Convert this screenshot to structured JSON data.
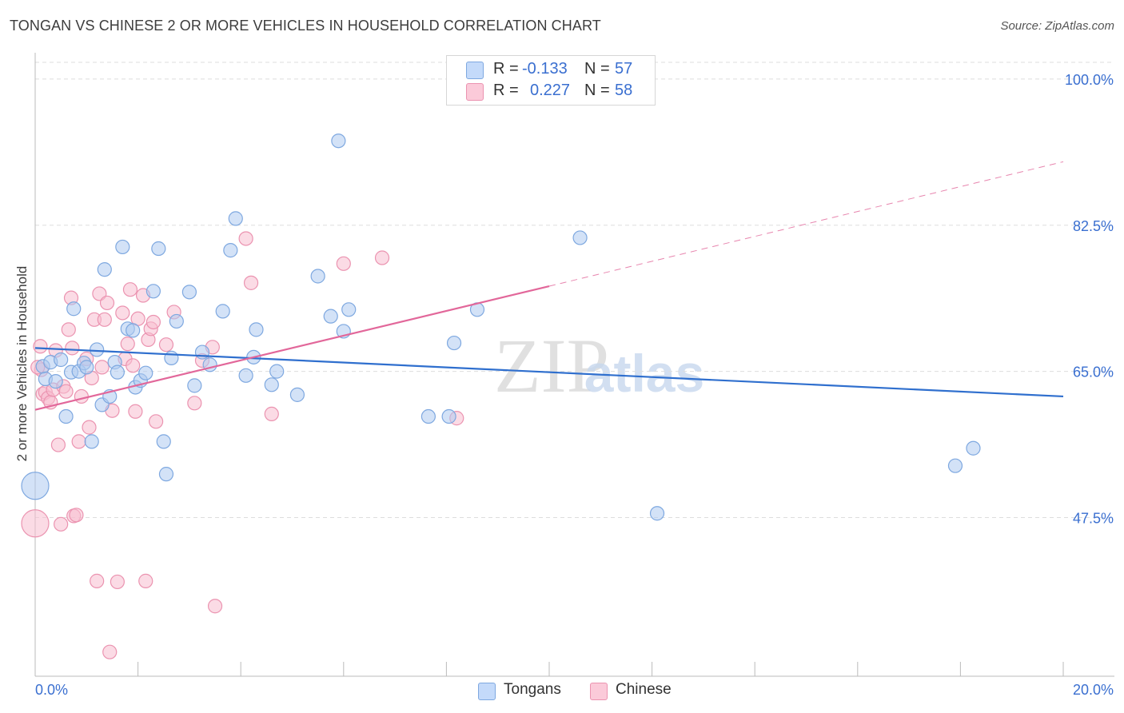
{
  "title": "TONGAN VS CHINESE 2 OR MORE VEHICLES IN HOUSEHOLD CORRELATION CHART",
  "source": "Source: ZipAtlas.com",
  "watermark": {
    "zip": "ZIP",
    "atlas": "atlas"
  },
  "legend": {
    "tongans": {
      "r_label": "R =",
      "r_value": "-0.133",
      "n_label": "N =",
      "n_value": "57"
    },
    "chinese": {
      "r_label": "R =",
      "r_value": "0.227",
      "n_label": "N =",
      "n_value": "58"
    }
  },
  "colors": {
    "tongans_fill": "#aecbf0",
    "tongans_stroke": "#7ea8e0",
    "tongans_line": "#2f6fce",
    "chinese_fill": "#f7bdd0",
    "chinese_stroke": "#eb93b0",
    "chinese_line": "#e2679a",
    "axis_label": "#3a6fd0",
    "grid": "#dddddd"
  },
  "chart_data": {
    "type": "scatter",
    "title": "TONGAN VS CHINESE 2 OR MORE VEHICLES IN HOUSEHOLD CORRELATION CHART",
    "xlabel": "",
    "ylabel": "2 or more Vehicles in Household",
    "xlim": [
      0,
      20
    ],
    "ylim": [
      28.5,
      102
    ],
    "x_tick_labels": [
      "0.0%",
      "20.0%"
    ],
    "y_ticks": [
      47.5,
      65.0,
      82.5,
      100.0
    ],
    "y_tick_labels": [
      "47.5%",
      "65.0%",
      "82.5%",
      "100.0%"
    ],
    "series": [
      {
        "name": "Tongans",
        "R": -0.133,
        "N": 57,
        "trend": {
          "x": [
            0,
            20
          ],
          "y": [
            67.8,
            62.0
          ]
        },
        "points": [
          {
            "x": 0.15,
            "y": 65.6
          },
          {
            "x": 0.2,
            "y": 64.1
          },
          {
            "x": 0.3,
            "y": 66.1
          },
          {
            "x": 0.4,
            "y": 63.8
          },
          {
            "x": 0.5,
            "y": 66.4
          },
          {
            "x": 0.6,
            "y": 59.6
          },
          {
            "x": 0.7,
            "y": 64.9
          },
          {
            "x": 0.75,
            "y": 72.5
          },
          {
            "x": 0.85,
            "y": 65.0
          },
          {
            "x": 0.95,
            "y": 66.0
          },
          {
            "x": 1.0,
            "y": 65.5
          },
          {
            "x": 1.1,
            "y": 56.6
          },
          {
            "x": 1.2,
            "y": 67.6
          },
          {
            "x": 1.3,
            "y": 61.0
          },
          {
            "x": 1.35,
            "y": 77.2
          },
          {
            "x": 1.45,
            "y": 62.0
          },
          {
            "x": 1.55,
            "y": 66.1
          },
          {
            "x": 1.6,
            "y": 64.9
          },
          {
            "x": 1.7,
            "y": 79.9
          },
          {
            "x": 1.8,
            "y": 70.1
          },
          {
            "x": 1.9,
            "y": 69.9
          },
          {
            "x": 1.95,
            "y": 63.1
          },
          {
            "x": 2.05,
            "y": 63.9
          },
          {
            "x": 2.15,
            "y": 64.8
          },
          {
            "x": 2.3,
            "y": 74.6
          },
          {
            "x": 2.4,
            "y": 79.7
          },
          {
            "x": 2.5,
            "y": 56.6
          },
          {
            "x": 2.55,
            "y": 52.7
          },
          {
            "x": 2.65,
            "y": 66.6
          },
          {
            "x": 2.75,
            "y": 71.0
          },
          {
            "x": 3.0,
            "y": 74.5
          },
          {
            "x": 3.1,
            "y": 63.3
          },
          {
            "x": 3.25,
            "y": 67.3
          },
          {
            "x": 3.4,
            "y": 65.8
          },
          {
            "x": 3.65,
            "y": 72.2
          },
          {
            "x": 3.8,
            "y": 79.5
          },
          {
            "x": 3.9,
            "y": 83.3
          },
          {
            "x": 4.1,
            "y": 64.5
          },
          {
            "x": 4.25,
            "y": 66.7
          },
          {
            "x": 4.3,
            "y": 70.0
          },
          {
            "x": 4.6,
            "y": 63.4
          },
          {
            "x": 4.7,
            "y": 65.0
          },
          {
            "x": 5.1,
            "y": 62.2
          },
          {
            "x": 5.5,
            "y": 76.4
          },
          {
            "x": 5.75,
            "y": 71.6
          },
          {
            "x": 5.9,
            "y": 92.6
          },
          {
            "x": 6.0,
            "y": 69.8
          },
          {
            "x": 6.1,
            "y": 72.4
          },
          {
            "x": 7.65,
            "y": 59.6
          },
          {
            "x": 8.05,
            "y": 59.6
          },
          {
            "x": 8.15,
            "y": 68.4
          },
          {
            "x": 8.6,
            "y": 72.4
          },
          {
            "x": 10.6,
            "y": 81.0
          },
          {
            "x": 12.1,
            "y": 48.0
          },
          {
            "x": 17.9,
            "y": 53.7
          },
          {
            "x": 18.25,
            "y": 55.8
          },
          {
            "x": 0.0,
            "y": 51.3
          }
        ]
      },
      {
        "name": "Chinese",
        "R": 0.227,
        "N": 58,
        "trend": {
          "x": [
            0,
            10
          ],
          "y": [
            60.4,
            75.2
          ]
        },
        "trend_extension": {
          "x": [
            10,
            20
          ],
          "y": [
            75.2,
            90.1
          ]
        },
        "points": [
          {
            "x": 0.1,
            "y": 68.0
          },
          {
            "x": 0.12,
            "y": 65.2
          },
          {
            "x": 0.15,
            "y": 62.3
          },
          {
            "x": 0.2,
            "y": 62.5
          },
          {
            "x": 0.25,
            "y": 61.8
          },
          {
            "x": 0.3,
            "y": 61.3
          },
          {
            "x": 0.35,
            "y": 62.8
          },
          {
            "x": 0.4,
            "y": 67.5
          },
          {
            "x": 0.45,
            "y": 56.2
          },
          {
            "x": 0.5,
            "y": 46.7
          },
          {
            "x": 0.55,
            "y": 63.2
          },
          {
            "x": 0.6,
            "y": 62.6
          },
          {
            "x": 0.65,
            "y": 70.0
          },
          {
            "x": 0.7,
            "y": 73.8
          },
          {
            "x": 0.72,
            "y": 67.8
          },
          {
            "x": 0.75,
            "y": 47.7
          },
          {
            "x": 0.8,
            "y": 47.8
          },
          {
            "x": 0.85,
            "y": 56.6
          },
          {
            "x": 0.9,
            "y": 62.0
          },
          {
            "x": 1.0,
            "y": 66.5
          },
          {
            "x": 1.05,
            "y": 58.3
          },
          {
            "x": 1.1,
            "y": 64.2
          },
          {
            "x": 1.15,
            "y": 71.2
          },
          {
            "x": 1.2,
            "y": 39.9
          },
          {
            "x": 1.25,
            "y": 74.3
          },
          {
            "x": 1.3,
            "y": 65.5
          },
          {
            "x": 1.35,
            "y": 71.2
          },
          {
            "x": 1.4,
            "y": 73.2
          },
          {
            "x": 1.45,
            "y": 31.4
          },
          {
            "x": 1.5,
            "y": 60.3
          },
          {
            "x": 1.6,
            "y": 39.8
          },
          {
            "x": 1.7,
            "y": 72.0
          },
          {
            "x": 1.75,
            "y": 66.5
          },
          {
            "x": 1.8,
            "y": 68.3
          },
          {
            "x": 1.85,
            "y": 74.8
          },
          {
            "x": 1.9,
            "y": 65.7
          },
          {
            "x": 1.95,
            "y": 60.2
          },
          {
            "x": 2.0,
            "y": 71.3
          },
          {
            "x": 2.1,
            "y": 74.1
          },
          {
            "x": 2.15,
            "y": 39.9
          },
          {
            "x": 2.2,
            "y": 68.8
          },
          {
            "x": 2.25,
            "y": 70.1
          },
          {
            "x": 2.3,
            "y": 70.9
          },
          {
            "x": 2.35,
            "y": 59.0
          },
          {
            "x": 2.55,
            "y": 68.2
          },
          {
            "x": 2.7,
            "y": 72.1
          },
          {
            "x": 3.1,
            "y": 61.2
          },
          {
            "x": 3.25,
            "y": 66.3
          },
          {
            "x": 3.45,
            "y": 67.9
          },
          {
            "x": 3.5,
            "y": 36.9
          },
          {
            "x": 4.1,
            "y": 80.9
          },
          {
            "x": 4.2,
            "y": 75.6
          },
          {
            "x": 4.6,
            "y": 59.9
          },
          {
            "x": 6.0,
            "y": 77.9
          },
          {
            "x": 6.75,
            "y": 78.6
          },
          {
            "x": 8.2,
            "y": 59.4
          },
          {
            "x": 0.0,
            "y": 46.8
          },
          {
            "x": 0.05,
            "y": 65.5
          }
        ]
      }
    ]
  }
}
